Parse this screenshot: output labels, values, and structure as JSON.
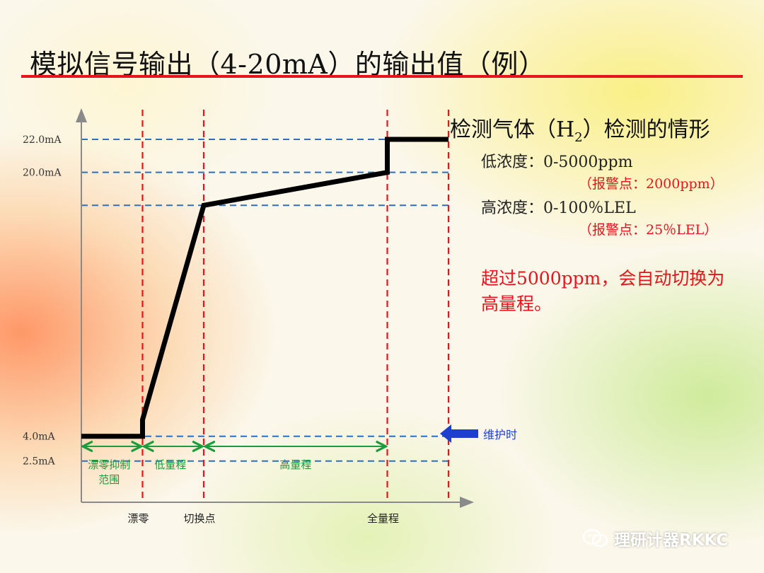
{
  "title": "模拟信号输出（4-20mA）的输出值（例）",
  "chart_data": {
    "type": "line",
    "title": "",
    "xlabel": "",
    "ylabel": "",
    "y_ticks": [
      {
        "label": "22.0mA",
        "value": 22.0
      },
      {
        "label": "20.0mA",
        "value": 20.0
      },
      {
        "label": "4.0mA",
        "value": 4.0
      },
      {
        "label": "2.5mA",
        "value": 2.5
      }
    ],
    "unlabeled_y_guides": [
      18.0
    ],
    "ylim": [
      0,
      24.5
    ],
    "x_markers": [
      {
        "label": "漂零",
        "value": 1
      },
      {
        "label": "切换点",
        "value": 2
      },
      {
        "label": "全量程",
        "value": 5
      },
      {
        "label": "",
        "value": 6
      }
    ],
    "xlim": [
      0,
      6.5
    ],
    "ranges": [
      {
        "label": "漂零抑制\n范围",
        "from": 0,
        "to": 1
      },
      {
        "label": "低量程",
        "from": 1,
        "to": 2
      },
      {
        "label": "高量程",
        "from": 2,
        "to": 5
      }
    ],
    "series": [
      {
        "points": [
          [
            0,
            4.0
          ],
          [
            1,
            4.0
          ],
          [
            1,
            5.0
          ],
          [
            2,
            18.0
          ],
          [
            5,
            20.0
          ],
          [
            5,
            22.0
          ],
          [
            6,
            22.0
          ]
        ]
      }
    ],
    "colors": {
      "line": "#000000",
      "v_guides": "#e8131b",
      "h_guides": "#2f6fc0",
      "ranges": "#1a9c3a",
      "axes": "#8a8a8a"
    },
    "grid": false
  },
  "info": {
    "heading_pre": "检测气体（H",
    "heading_sub": "2",
    "heading_post": "）检测的情形",
    "low_range": "低浓度：0-5000ppm",
    "low_alarm": "（报警点：2000ppm）",
    "high_range": "高浓度：0-100％LEL",
    "high_alarm": "（报警点：25％LEL）",
    "note_line1": "超过5000ppm，会自动切换为",
    "note_line2": "高量程。"
  },
  "maintenance": {
    "label": "维护时",
    "value": 2.5,
    "arrow_color": "#1d3fd1",
    "icon": "left-arrow-icon"
  },
  "watermark": {
    "text": "理研计器RKKC",
    "icon": "wechat-icon"
  }
}
